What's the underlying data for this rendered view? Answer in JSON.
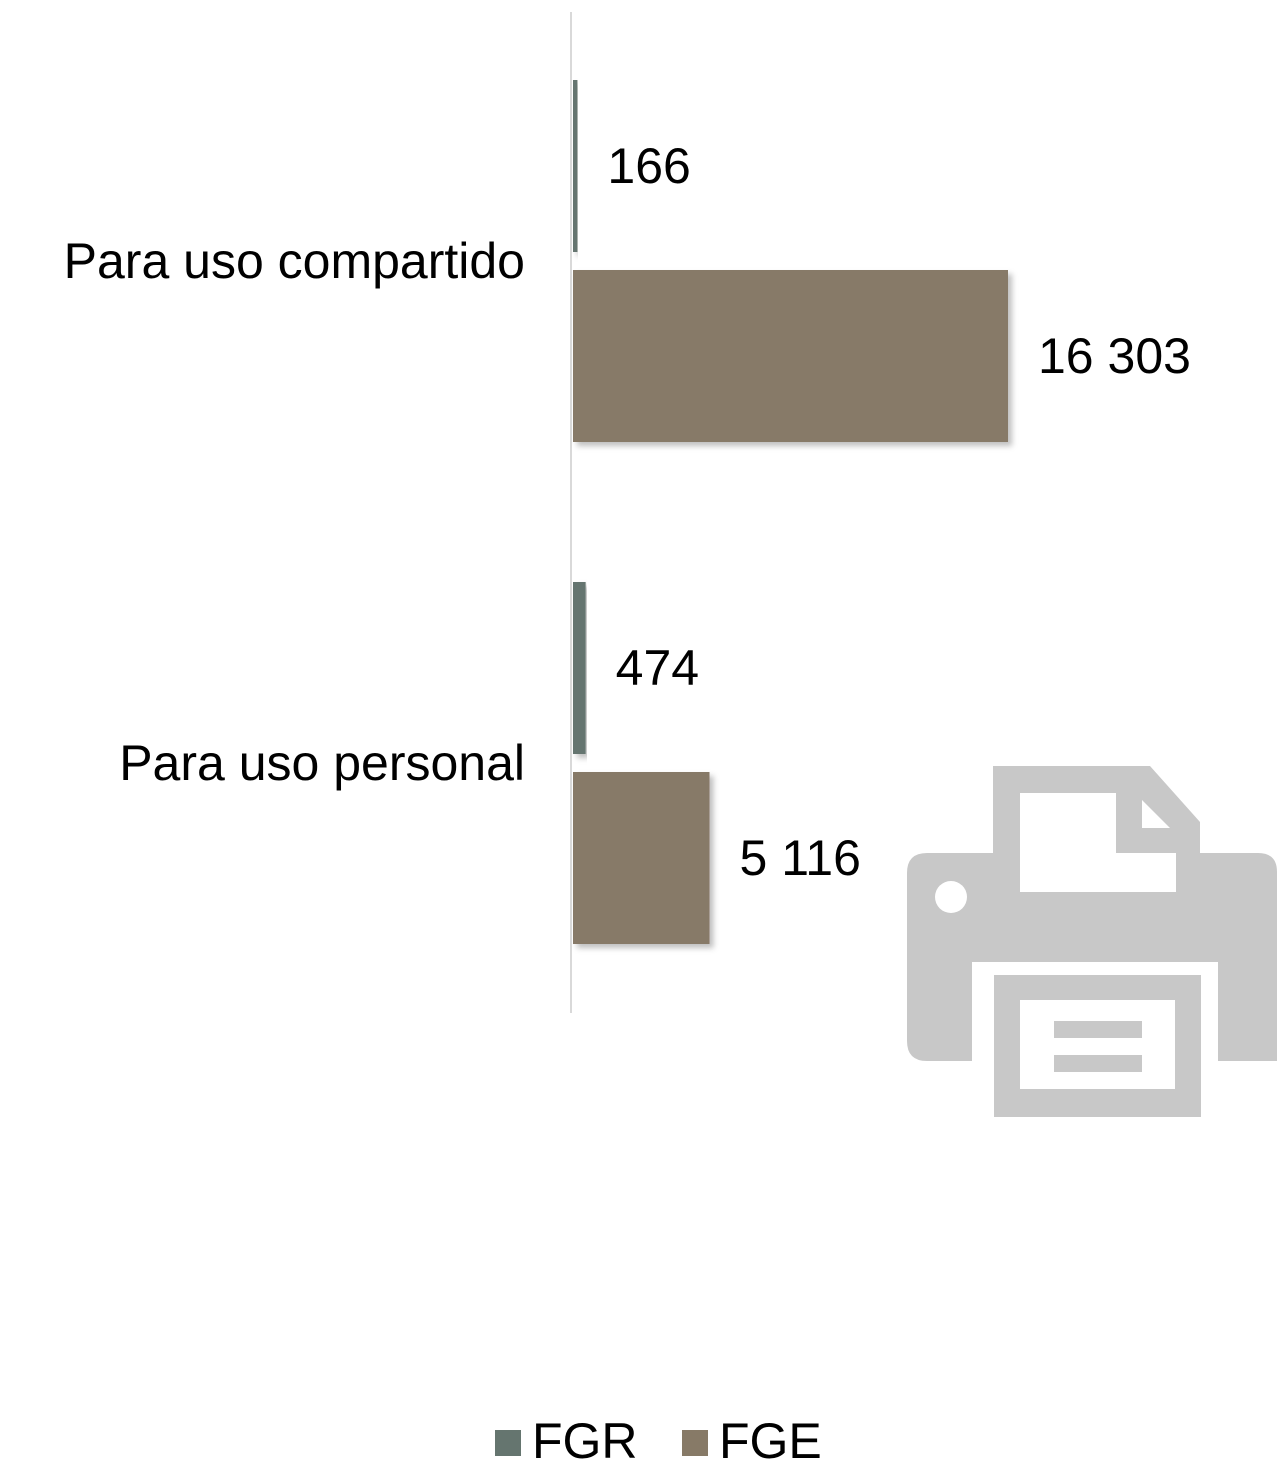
{
  "chart_data": {
    "type": "bar",
    "orientation": "horizontal",
    "categories": [
      "Para uso compartido",
      "Para uso personal"
    ],
    "series": [
      {
        "name": "FGR",
        "values": [
          166,
          474
        ],
        "labels": [
          "166",
          "474"
        ],
        "color": "#65756F"
      },
      {
        "name": "FGE",
        "values": [
          16303,
          5116
        ],
        "labels": [
          "16 303",
          "5 116"
        ],
        "color": "#877A67"
      }
    ],
    "xlim": [
      0,
      16303
    ],
    "grid": false,
    "legend_position": "bottom"
  },
  "decoration": {
    "icon": "printer-icon",
    "color": "#C8C8C8"
  }
}
